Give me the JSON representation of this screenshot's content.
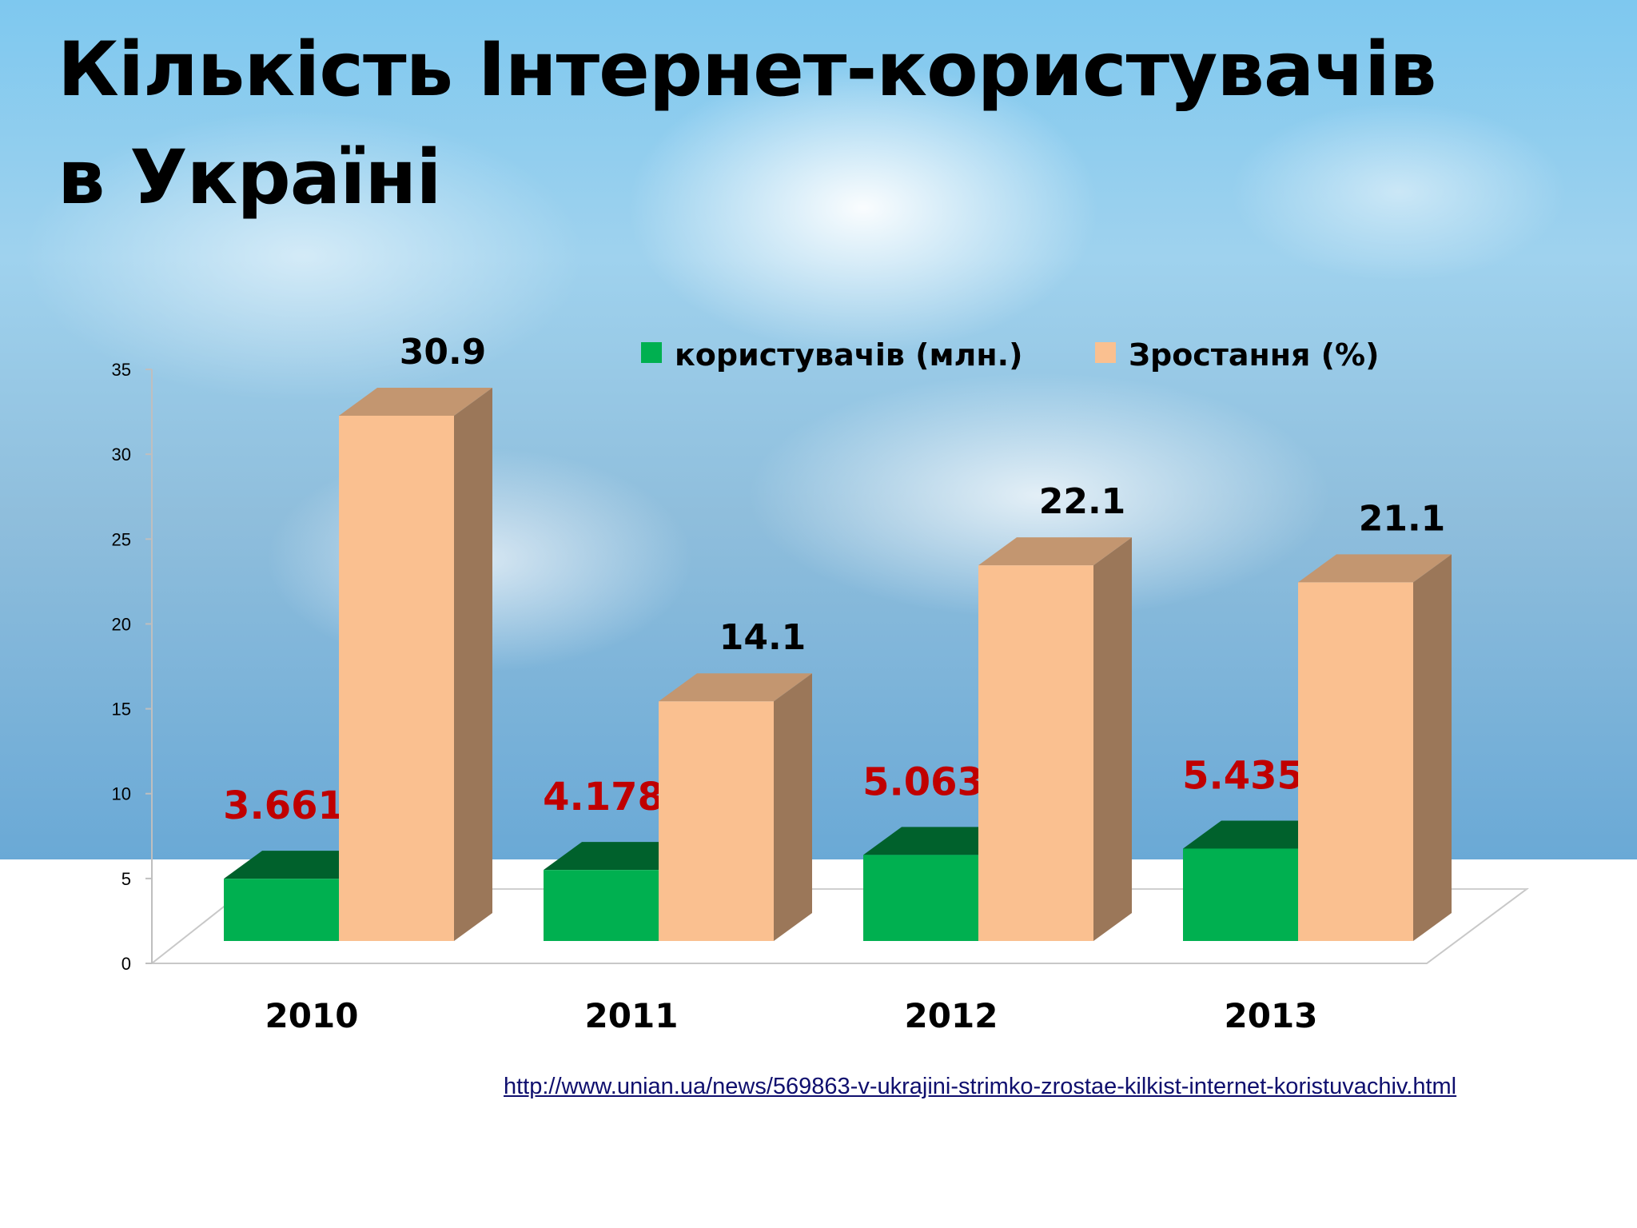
{
  "title_lines": [
    "Кількість Інтернет-користувачів",
    "в Україні"
  ],
  "source_link": "http://www.unian.ua/news/569863-v-ukrajini-strimko-zrostae-kilkist-internet-koristuvachiv.html",
  "chart_data": {
    "type": "bar",
    "categories": [
      "2010",
      "2011",
      "2012",
      "2013"
    ],
    "series": [
      {
        "name": "користувачів (млн.)",
        "values": [
          3.661,
          4.178,
          5.063,
          5.435
        ],
        "labels": [
          "3.661",
          "4.178",
          "5.063",
          "5.435"
        ],
        "color": "#00b050",
        "label_color": "#c00000"
      },
      {
        "name": "Зростання (%)",
        "values": [
          30.9,
          14.1,
          22.1,
          21.1
        ],
        "labels": [
          "30.9",
          "14.1",
          "22.1",
          "21.1"
        ],
        "color": "#fac090",
        "label_color": "#000000"
      }
    ],
    "yticks": [
      "0",
      "5",
      "10",
      "15",
      "20",
      "25",
      "30",
      "35"
    ],
    "ylim": [
      0,
      35
    ],
    "legend_position": "top-right",
    "grid": false
  }
}
